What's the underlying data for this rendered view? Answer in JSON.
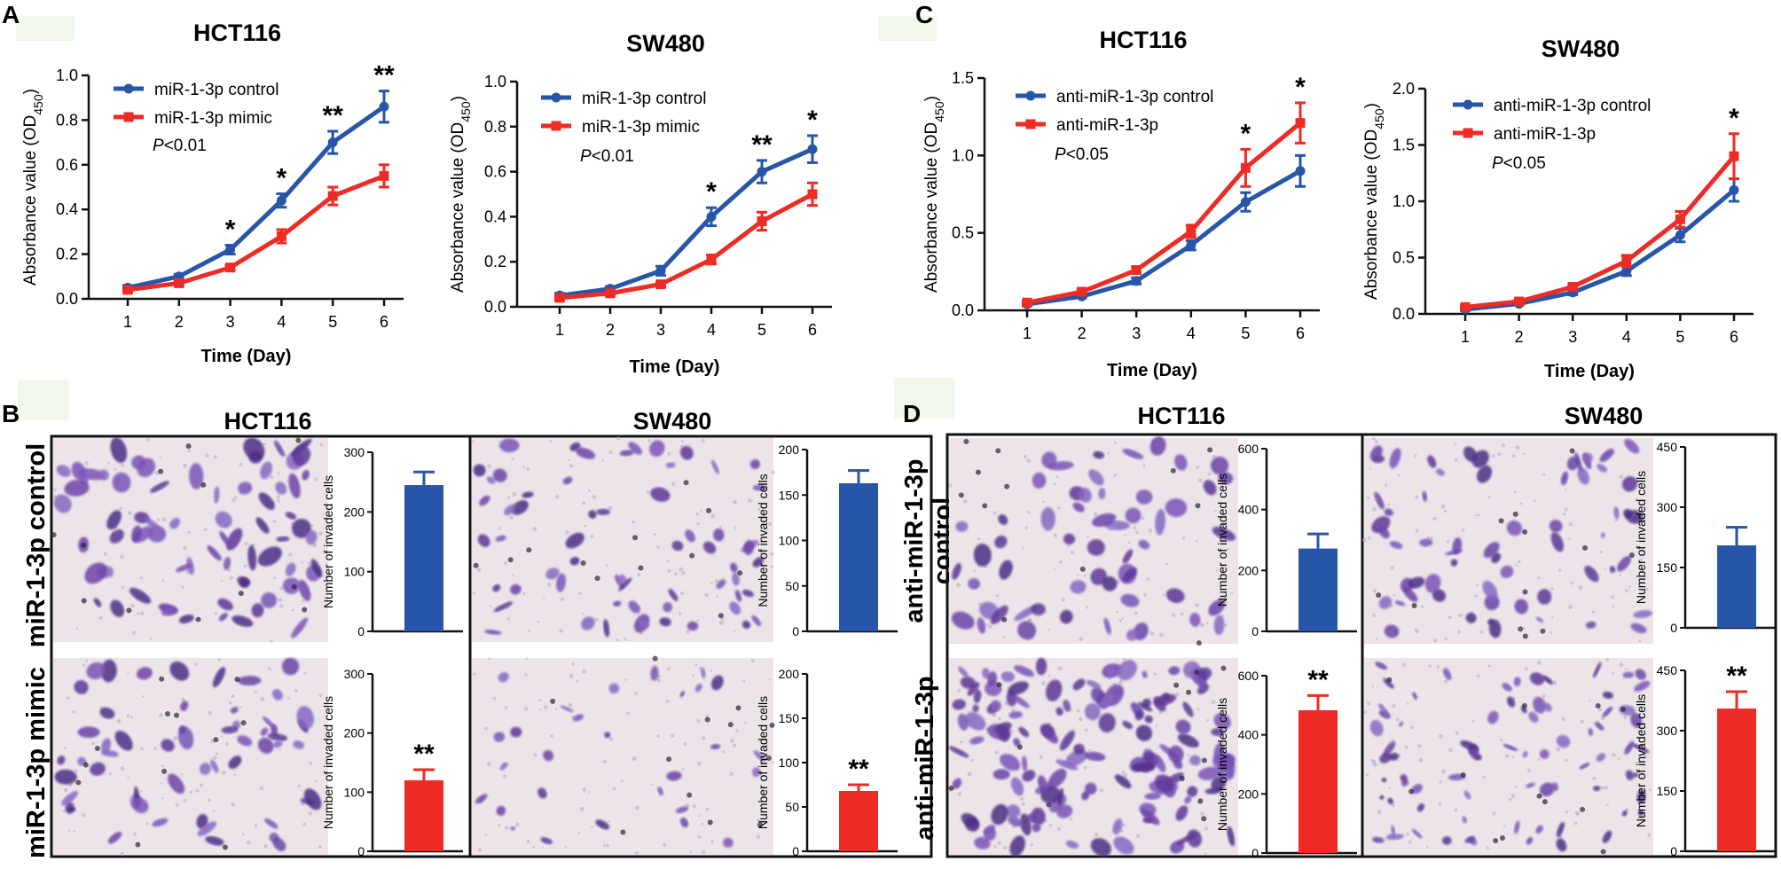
{
  "panel_letters": [
    "A",
    "B",
    "C",
    "D"
  ],
  "colors": {
    "control": "#2756a8",
    "treatment": "#ee2b24",
    "stain": "#6a3ea3",
    "membrane": "#ece4e9"
  },
  "chart_data": [
    {
      "id": "A1",
      "type": "line",
      "title": "HCT116",
      "xlabel": "Time (Day)",
      "ylabel": "Absorbance value (OD",
      "ylabel_sub": "450",
      "ylabel_close": ")",
      "x": [
        1,
        2,
        3,
        4,
        5,
        6
      ],
      "xticks": [
        "1",
        "2",
        "3",
        "4",
        "5",
        "6"
      ],
      "ylim": [
        0,
        1.0
      ],
      "yticks": [
        "0.0",
        "0.2",
        "0.4",
        "0.6",
        "0.8",
        "1.0"
      ],
      "series": [
        {
          "name": "miR-1-3p control",
          "color": "#2756a8",
          "values": [
            0.05,
            0.1,
            0.22,
            0.44,
            0.7,
            0.86
          ],
          "err": [
            0.01,
            0.01,
            0.02,
            0.03,
            0.05,
            0.07
          ]
        },
        {
          "name": "miR-1-3p mimic",
          "color": "#ee2b24",
          "values": [
            0.04,
            0.07,
            0.14,
            0.28,
            0.46,
            0.55
          ],
          "err": [
            0.01,
            0.01,
            0.01,
            0.03,
            0.04,
            0.05
          ]
        }
      ],
      "pvalue": "<0.01",
      "pvalue_prefix": "P",
      "significance": [
        "",
        "",
        "*",
        "*",
        "**",
        "**"
      ]
    },
    {
      "id": "A2",
      "type": "line",
      "title": "SW480",
      "xlabel": "Time (Day)",
      "ylabel": "Absorbance value (OD",
      "ylabel_sub": "450",
      "ylabel_close": ")",
      "x": [
        1,
        2,
        3,
        4,
        5,
        6
      ],
      "xticks": [
        "1",
        "2",
        "3",
        "4",
        "5",
        "6"
      ],
      "ylim": [
        0,
        1.0
      ],
      "yticks": [
        "0.0",
        "0.2",
        "0.4",
        "0.6",
        "0.8",
        "1.0"
      ],
      "series": [
        {
          "name": "miR-1-3p control",
          "color": "#2756a8",
          "values": [
            0.05,
            0.08,
            0.16,
            0.4,
            0.6,
            0.7
          ],
          "err": [
            0.01,
            0.01,
            0.02,
            0.04,
            0.05,
            0.06
          ]
        },
        {
          "name": "miR-1-3p mimic",
          "color": "#ee2b24",
          "values": [
            0.04,
            0.06,
            0.1,
            0.21,
            0.38,
            0.5
          ],
          "err": [
            0.01,
            0.01,
            0.01,
            0.02,
            0.04,
            0.05
          ]
        }
      ],
      "pvalue": "<0.01",
      "pvalue_prefix": "P",
      "significance": [
        "",
        "",
        "",
        "*",
        "**",
        "*"
      ]
    },
    {
      "id": "C1",
      "type": "line",
      "title": "HCT116",
      "xlabel": "Time (Day)",
      "ylabel": "Absorbance value (OD",
      "ylabel_sub": "450",
      "ylabel_close": ")",
      "x": [
        1,
        2,
        3,
        4,
        5,
        6
      ],
      "xticks": [
        "1",
        "2",
        "3",
        "4",
        "5",
        "6"
      ],
      "ylim": [
        0,
        1.5
      ],
      "yticks": [
        "0.0",
        "0.5",
        "1.0",
        "1.5"
      ],
      "series": [
        {
          "name": "anti-miR-1-3p control",
          "color": "#2756a8",
          "values": [
            0.04,
            0.09,
            0.19,
            0.42,
            0.7,
            0.9
          ],
          "err": [
            0.01,
            0.01,
            0.02,
            0.03,
            0.06,
            0.1
          ]
        },
        {
          "name": "anti-miR-1-3p",
          "color": "#ee2b24",
          "values": [
            0.05,
            0.12,
            0.26,
            0.51,
            0.92,
            1.21
          ],
          "err": [
            0.01,
            0.01,
            0.02,
            0.04,
            0.12,
            0.13
          ]
        }
      ],
      "pvalue": "<0.05",
      "pvalue_prefix": "P",
      "significance": [
        "",
        "",
        "",
        "",
        "*",
        "*"
      ]
    },
    {
      "id": "C2",
      "type": "line",
      "title": "SW480",
      "xlabel": "Time (Day)",
      "ylabel": "Absorbance value (OD",
      "ylabel_sub": "450",
      "ylabel_close": ")",
      "x": [
        1,
        2,
        3,
        4,
        5,
        6
      ],
      "xticks": [
        "1",
        "2",
        "3",
        "4",
        "5",
        "6"
      ],
      "ylim": [
        0,
        2.0
      ],
      "yticks": [
        "0.0",
        "0.5",
        "1.0",
        "1.5",
        "2.0"
      ],
      "series": [
        {
          "name": "anti-miR-1-3p control",
          "color": "#2756a8",
          "values": [
            0.04,
            0.09,
            0.19,
            0.38,
            0.7,
            1.1
          ],
          "err": [
            0.01,
            0.01,
            0.02,
            0.04,
            0.06,
            0.1
          ]
        },
        {
          "name": "anti-miR-1-3p",
          "color": "#ee2b24",
          "values": [
            0.06,
            0.11,
            0.24,
            0.47,
            0.84,
            1.4
          ],
          "err": [
            0.01,
            0.01,
            0.02,
            0.05,
            0.07,
            0.2
          ]
        }
      ],
      "pvalue": "<0.05",
      "pvalue_prefix": "P",
      "significance": [
        "",
        "",
        "",
        "",
        "",
        "*"
      ]
    },
    {
      "id": "B-HCT-ctrl",
      "type": "bar",
      "ylabel": "Number of invaded cells",
      "ylim": [
        0,
        300
      ],
      "yticks": [
        "0",
        "100",
        "200",
        "300"
      ],
      "value": 245,
      "err": 22,
      "color": "#2756a8",
      "significance": ""
    },
    {
      "id": "B-HCT-mimic",
      "type": "bar",
      "ylabel": "Number of invaded cells",
      "ylim": [
        0,
        300
      ],
      "yticks": [
        "0",
        "100",
        "200",
        "300"
      ],
      "value": 120,
      "err": 18,
      "color": "#ee2b24",
      "significance": "**"
    },
    {
      "id": "B-SW-ctrl",
      "type": "bar",
      "ylabel": "Number of invaded cells",
      "ylim": [
        0,
        200
      ],
      "yticks": [
        "0",
        "50",
        "100",
        "150",
        "200"
      ],
      "value": 163,
      "err": 14,
      "color": "#2756a8",
      "significance": ""
    },
    {
      "id": "B-SW-mimic",
      "type": "bar",
      "ylabel": "Number of invaded cells",
      "ylim": [
        0,
        200
      ],
      "yticks": [
        "0",
        "50",
        "100",
        "150",
        "200"
      ],
      "value": 68,
      "err": 7,
      "color": "#ee2b24",
      "significance": "**"
    },
    {
      "id": "D-HCT-ctrl",
      "type": "bar",
      "ylabel": "Number of invaded cells",
      "ylim": [
        0,
        600
      ],
      "yticks": [
        "0",
        "200",
        "400",
        "600"
      ],
      "value": 272,
      "err": 48,
      "color": "#2756a8",
      "significance": ""
    },
    {
      "id": "D-HCT-anti",
      "type": "bar",
      "ylabel": "Number of invaded cells",
      "ylim": [
        0,
        600
      ],
      "yticks": [
        "0",
        "200",
        "400",
        "600"
      ],
      "value": 483,
      "err": 50,
      "color": "#ee2b24",
      "significance": "**"
    },
    {
      "id": "D-SW-ctrl",
      "type": "bar",
      "ylabel": "Number of invaded cells",
      "ylim": [
        0,
        450
      ],
      "yticks": [
        "0",
        "150",
        "300",
        "450"
      ],
      "value": 205,
      "err": 45,
      "color": "#2756a8",
      "significance": ""
    },
    {
      "id": "D-SW-anti",
      "type": "bar",
      "ylabel": "Number of invaded cells",
      "ylim": [
        0,
        450
      ],
      "yticks": [
        "0",
        "150",
        "300",
        "450"
      ],
      "value": 355,
      "err": 42,
      "color": "#ee2b24",
      "significance": "**"
    }
  ],
  "panel_B": {
    "title_left": "HCT116",
    "title_right": "SW480",
    "row_labels": [
      "miR-1-3p control",
      "miR-1-3p mimic"
    ]
  },
  "panel_D": {
    "title_left": "HCT116",
    "title_right": "SW480",
    "row_labels": [
      "anti-miR-1-3p control",
      "anti-miR-1-3p"
    ],
    "row_label_lines": [
      [
        "anti-miR-1-3p",
        "control"
      ],
      [
        "anti-miR-1-3p"
      ]
    ]
  }
}
